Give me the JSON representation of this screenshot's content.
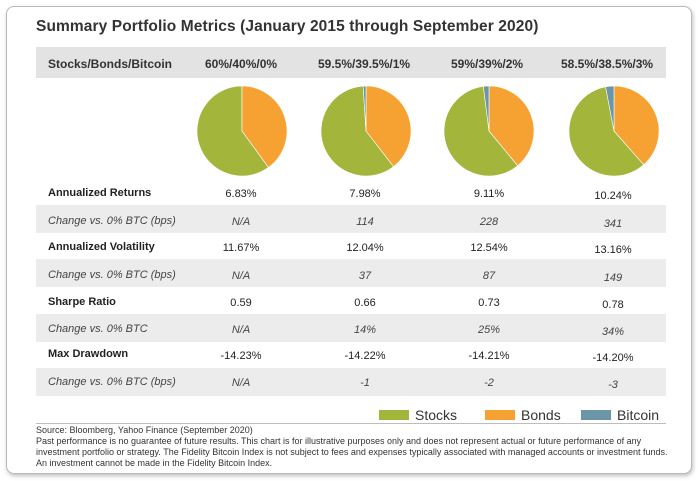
{
  "title": "Summary Portfolio Metrics (January 2015 through September 2020)",
  "header": {
    "label": "Stocks/Bonds/Bitcoin",
    "portfolios": [
      "60%/40%/0%",
      "59.5%/39.5%/1%",
      "59%/39%/2%",
      "58.5%/38.5%/3%"
    ]
  },
  "colors": {
    "stocks": "#a3b53a",
    "bonds": "#f6a233",
    "bitcoin": "#6a96a8",
    "band": "#ececec"
  },
  "legend": [
    "Stocks",
    "Bonds",
    "Bitcoin"
  ],
  "rows": [
    {
      "label": "Annualized Returns",
      "kind": "metric",
      "values": [
        "6.83%",
        "7.98%",
        "9.11%",
        "10.24%"
      ]
    },
    {
      "label": "Change vs. 0% BTC (bps)",
      "kind": "change",
      "values": [
        "N/A",
        "114",
        "228",
        "341"
      ]
    },
    {
      "label": "Annualized Volatility",
      "kind": "metric",
      "values": [
        "11.67%",
        "12.04%",
        "12.54%",
        "13.16%"
      ]
    },
    {
      "label": "Change vs. 0% BTC (bps)",
      "kind": "change",
      "values": [
        "N/A",
        "37",
        "87",
        "149"
      ]
    },
    {
      "label": "Sharpe Ratio",
      "kind": "metric",
      "values": [
        "0.59",
        "0.66",
        "0.73",
        "0.78"
      ]
    },
    {
      "label": "Change vs. 0% BTC",
      "kind": "change",
      "values": [
        "N/A",
        "14%",
        "25%",
        "34%"
      ]
    },
    {
      "label": "Max Drawdown",
      "kind": "metric",
      "values": [
        "-14.23%",
        "-14.22%",
        "-14.21%",
        "-14.20%"
      ]
    },
    {
      "label": "Change vs. 0% BTC (bps)",
      "kind": "change",
      "values": [
        "N/A",
        "-1",
        "-2",
        "-3"
      ]
    }
  ],
  "footnotes": {
    "source": "Source: Bloomberg, Yahoo Finance (September 2020)",
    "disclaimer": "Past performance is no guarantee of future results. This chart is for illustrative purposes only and does not represent actual or future performance of any investment portfolio or strategy. The Fidelity Bitcoin Index is not subject to fees and expenses typically associated with managed accounts or investment funds. An investment cannot be made in the Fidelity Bitcoin Index."
  },
  "chart_data": {
    "type": "pie",
    "categories": [
      "Stocks",
      "Bonds",
      "Bitcoin"
    ],
    "portfolios": [
      {
        "name": "60%/40%/0%",
        "values": [
          60,
          40,
          0
        ]
      },
      {
        "name": "59.5%/39.5%/1%",
        "values": [
          59.5,
          39.5,
          1
        ]
      },
      {
        "name": "59%/39%/2%",
        "values": [
          59,
          39,
          2
        ]
      },
      {
        "name": "58.5%/38.5%/3%",
        "values": [
          58.5,
          38.5,
          3
        ]
      }
    ],
    "legend_position": "bottom-right"
  }
}
